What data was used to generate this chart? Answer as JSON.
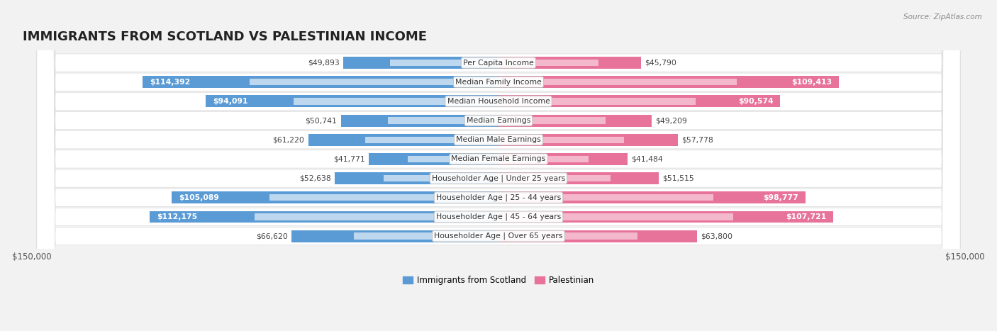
{
  "title": "IMMIGRANTS FROM SCOTLAND VS PALESTINIAN INCOME",
  "source": "Source: ZipAtlas.com",
  "categories": [
    "Per Capita Income",
    "Median Family Income",
    "Median Household Income",
    "Median Earnings",
    "Median Male Earnings",
    "Median Female Earnings",
    "Householder Age | Under 25 years",
    "Householder Age | 25 - 44 years",
    "Householder Age | 45 - 64 years",
    "Householder Age | Over 65 years"
  ],
  "scotland_values": [
    49893,
    114392,
    94091,
    50741,
    61220,
    41771,
    52638,
    105089,
    112175,
    66620
  ],
  "palestinian_values": [
    45790,
    109413,
    90574,
    49209,
    57778,
    41484,
    51515,
    98777,
    107721,
    63800
  ],
  "scotland_color_dark": "#5b9bd5",
  "scotland_color_light": "#bdd7ee",
  "palestinian_color_dark": "#e8739a",
  "palestinian_color_light": "#f4b8cd",
  "max_value": 150000,
  "x_label_left": "$150,000",
  "x_label_right": "$150,000",
  "scotland_legend": "Immigrants from Scotland",
  "palestinian_legend": "Palestinian",
  "background_color": "#f2f2f2",
  "row_bg_color": "#e8e8e8",
  "title_fontsize": 13,
  "bar_height": 0.62,
  "threshold_inside": 0.52
}
